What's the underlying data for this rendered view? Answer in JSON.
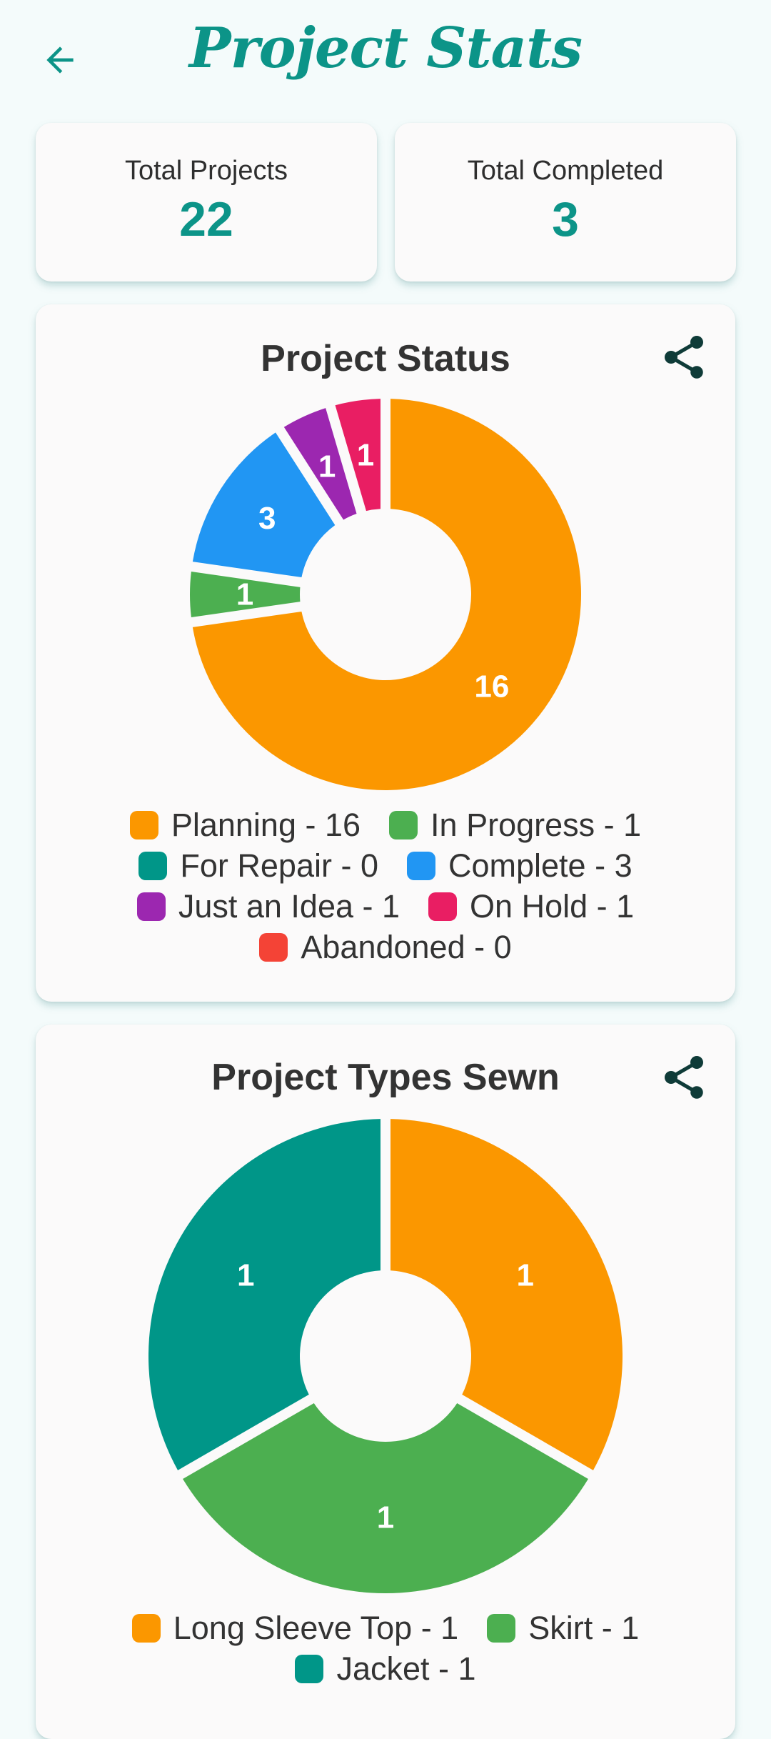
{
  "app_bar": {
    "title": "Project Stats",
    "back_icon": "arrow-left-icon"
  },
  "stats": {
    "total_projects_label": "Total Projects",
    "total_projects_value": "22",
    "total_completed_label": "Total Completed",
    "total_completed_value": "3"
  },
  "share_icon": "share-icon",
  "colors": {
    "accent": "#0c9488",
    "orange": "#fb9700",
    "green": "#4caf50",
    "teal": "#009688",
    "blue": "#2196f3",
    "purple": "#9c27b0",
    "pink": "#e91e63",
    "red": "#f44336"
  },
  "chart_data": [
    {
      "type": "pie",
      "title": "Project Status",
      "donut": true,
      "categories": [
        "Planning",
        "In Progress",
        "For Repair",
        "Complete",
        "Just an Idea",
        "On Hold",
        "Abandoned"
      ],
      "values": [
        16,
        1,
        0,
        3,
        1,
        1,
        0
      ],
      "colors": [
        "#fb9700",
        "#4caf50",
        "#009688",
        "#2196f3",
        "#9c27b0",
        "#e91e63",
        "#f44336"
      ],
      "legend_labels": [
        "Planning - 16",
        "In Progress - 1",
        "For Repair - 0",
        "Complete - 3",
        "Just an Idea - 1",
        "On Hold - 1",
        "Abandoned - 0"
      ],
      "slice_labels": [
        "16",
        "1",
        "",
        "3",
        "1",
        "1",
        ""
      ],
      "legend_position": "bottom"
    },
    {
      "type": "pie",
      "title": "Project Types Sewn",
      "donut": true,
      "categories": [
        "Long Sleeve Top",
        "Skirt",
        "Jacket"
      ],
      "values": [
        1,
        1,
        1
      ],
      "colors": [
        "#fb9700",
        "#4caf50",
        "#009688"
      ],
      "legend_labels": [
        "Long Sleeve Top - 1",
        "Skirt - 1",
        "Jacket - 1"
      ],
      "slice_labels": [
        "1",
        "1",
        "1"
      ],
      "legend_position": "bottom"
    }
  ]
}
